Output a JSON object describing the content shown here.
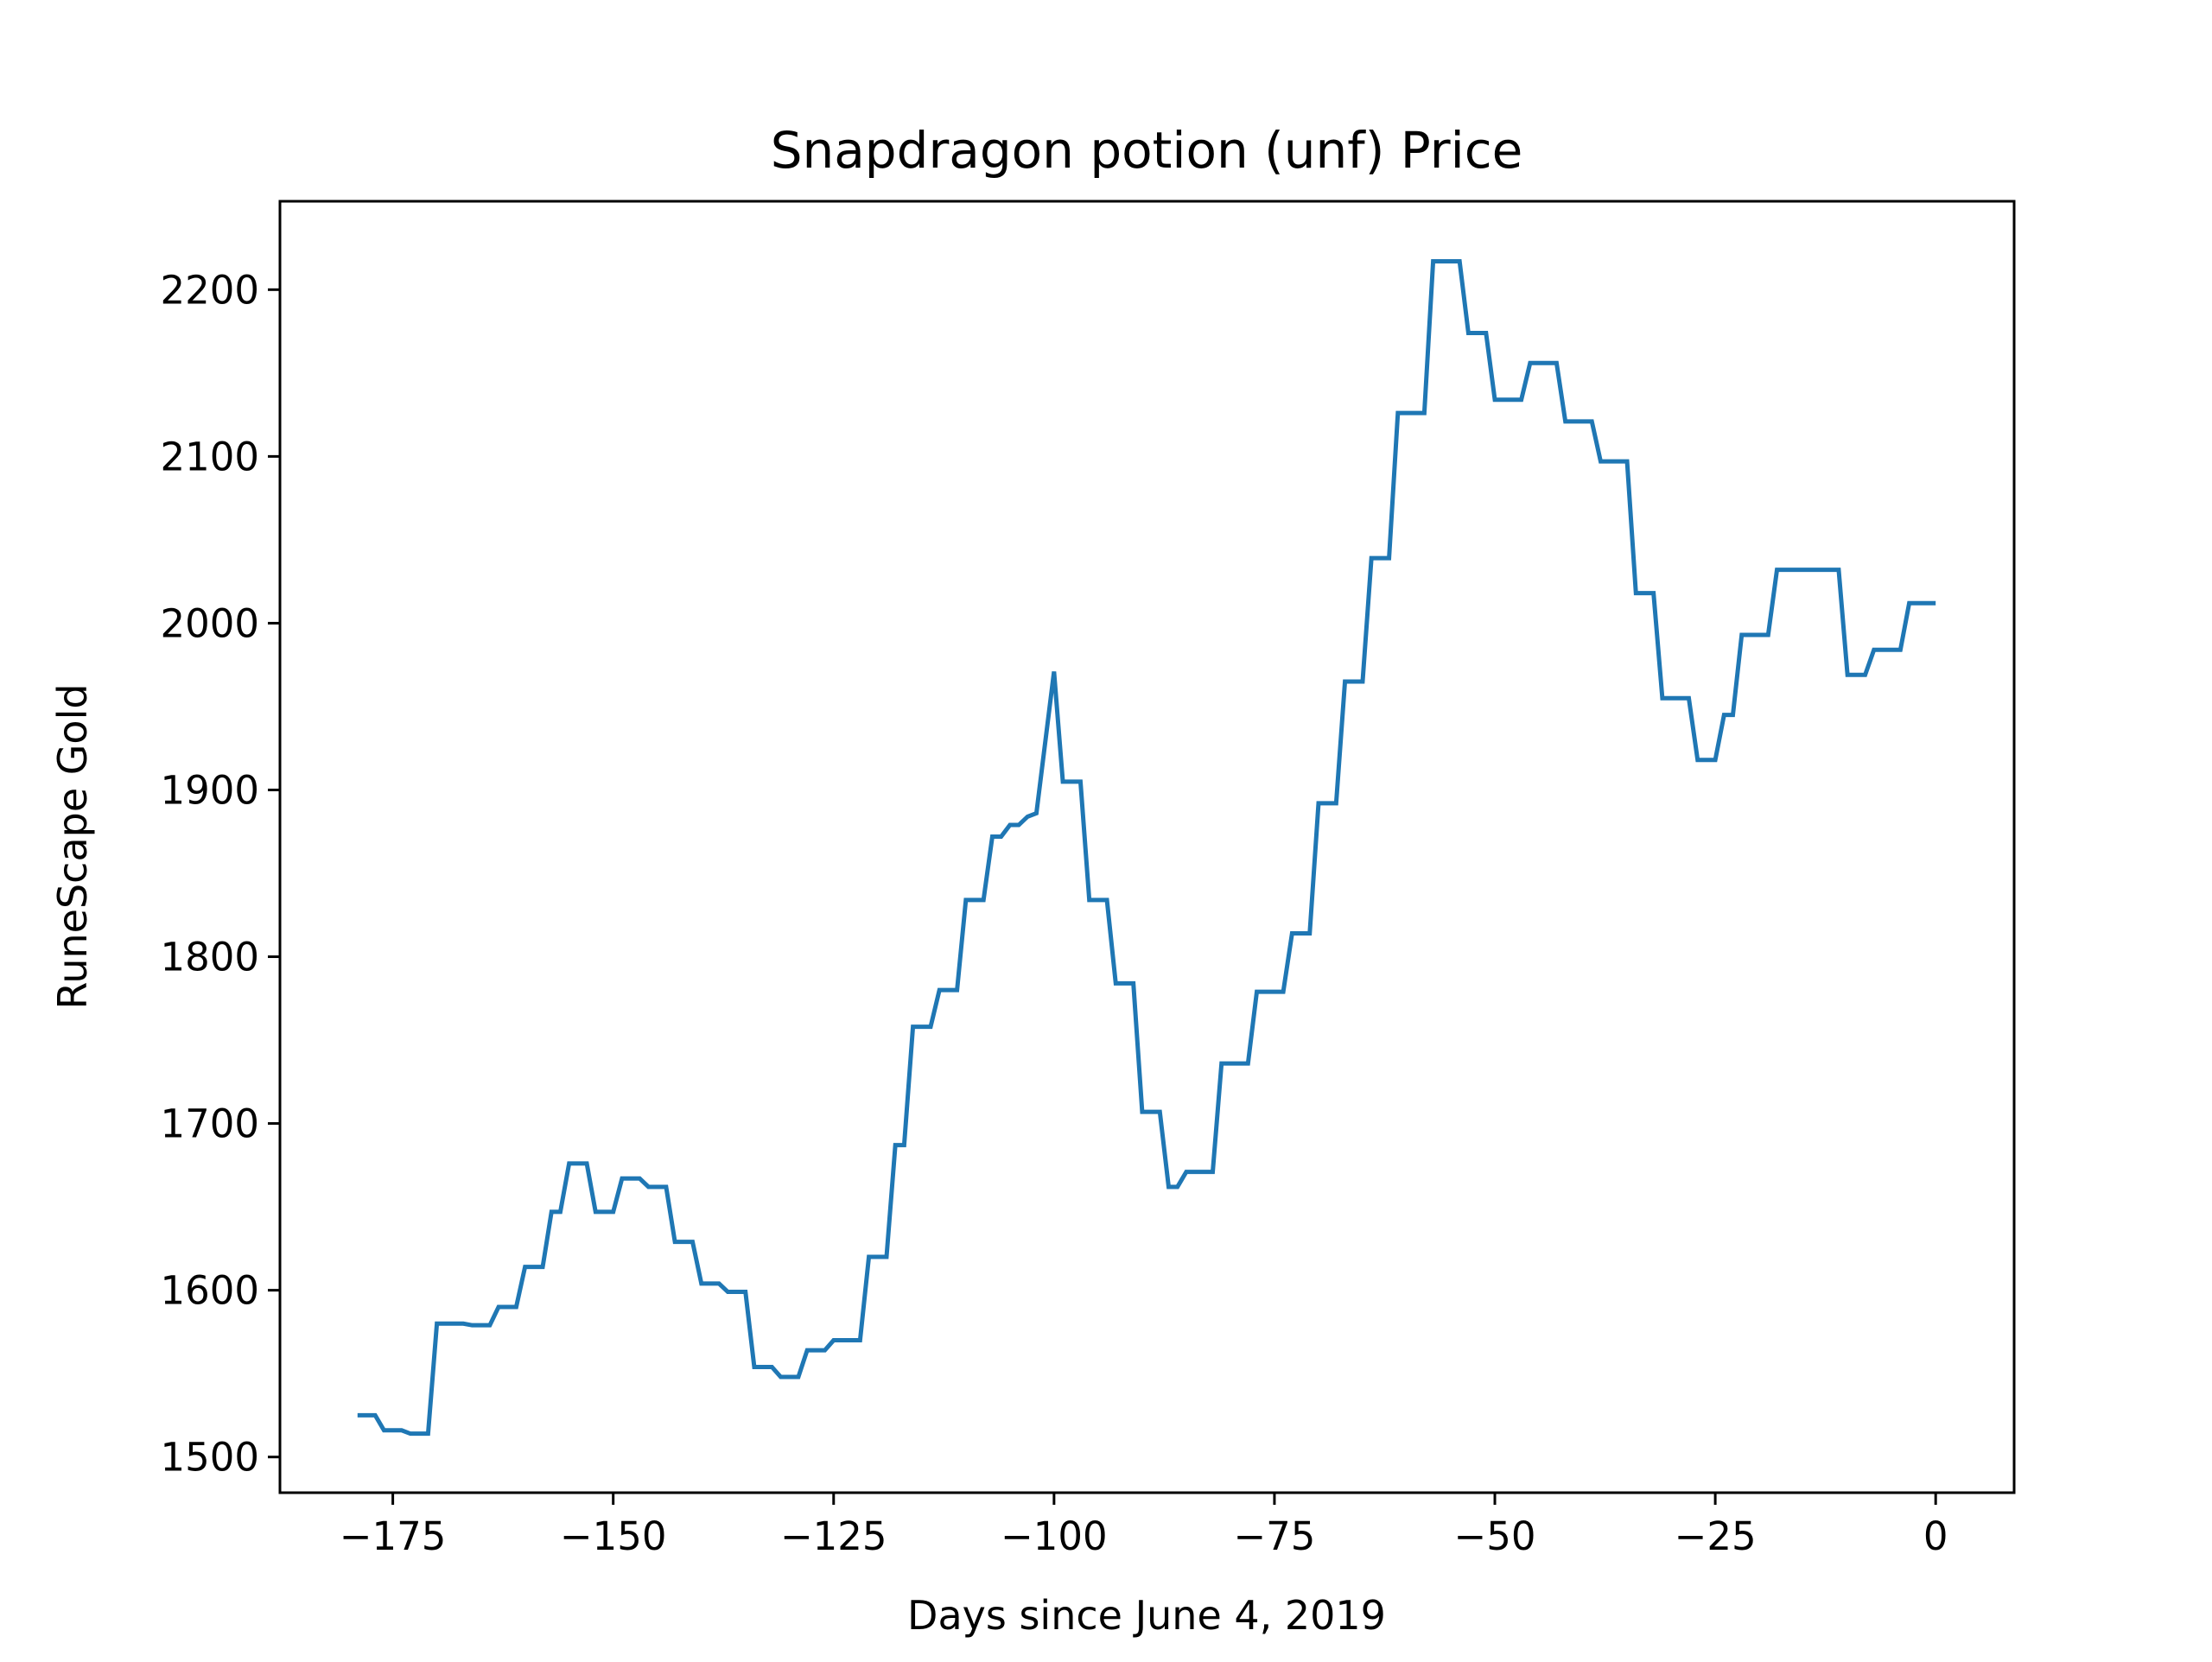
{
  "chart_data": {
    "type": "line",
    "title": "Snapdragon potion (unf) Price",
    "x_label": "Days since June 4, 2019",
    "y_label": "RuneScape Gold",
    "xlim": [
      -187.8,
      8.9
    ],
    "ylim": [
      1478.6,
      2253
    ],
    "xticks": [
      {
        "value": -175,
        "label": "−175"
      },
      {
        "value": -150,
        "label": "−150"
      },
      {
        "value": -125,
        "label": "−125"
      },
      {
        "value": -100,
        "label": "−100"
      },
      {
        "value": -75,
        "label": "−75"
      },
      {
        "value": -50,
        "label": "−50"
      },
      {
        "value": -25,
        "label": "−25"
      },
      0
    ],
    "yticks": [
      1500,
      1600,
      1700,
      1800,
      1900,
      2000,
      2100,
      2200
    ],
    "grid": false,
    "x": [
      -179,
      -177,
      -176,
      -174,
      -173,
      -171,
      -170,
      -167,
      -166,
      -164,
      -163,
      -161,
      -160,
      -158,
      -157,
      -156,
      -155,
      -153,
      -152,
      -150,
      -149,
      -147,
      -146,
      -144,
      -143,
      -141,
      -140,
      -138,
      -137,
      -135,
      -134,
      -132,
      -131,
      -129,
      -128,
      -126,
      -125,
      -122,
      -121,
      -119,
      -118,
      -117,
      -116,
      -114,
      -113,
      -111,
      -110,
      -108,
      -107,
      -106,
      -105,
      -104,
      -103,
      -102,
      -100,
      -99,
      -97,
      -96,
      -94,
      -93,
      -91,
      -90,
      -88,
      -87,
      -86,
      -85,
      -82,
      -81,
      -78,
      -77,
      -74,
      -73,
      -71,
      -70,
      -68,
      -67,
      -65,
      -64,
      -62,
      -61,
      -58,
      -57,
      -54,
      -53,
      -51,
      -50,
      -47,
      -46,
      -43,
      -42,
      -39,
      -38,
      -35,
      -34,
      -32,
      -31,
      -28,
      -27,
      -25,
      -24,
      -23,
      -22,
      -19,
      -18,
      -11,
      -10,
      -8,
      -7,
      -4,
      -3,
      0
    ],
    "series": [
      {
        "name": "price",
        "color": "#1f77b4",
        "values": [
          1525,
          1525,
          1516,
          1516,
          1514,
          1514,
          1580,
          1580,
          1579,
          1579,
          1590,
          1590,
          1614,
          1614,
          1647,
          1647,
          1676,
          1676,
          1647,
          1647,
          1667,
          1667,
          1662,
          1662,
          1629,
          1629,
          1604,
          1604,
          1599,
          1599,
          1554,
          1554,
          1548,
          1548,
          1564,
          1564,
          1570,
          1570,
          1620,
          1620,
          1687,
          1687,
          1758,
          1758,
          1780,
          1780,
          1834,
          1834,
          1872,
          1872,
          1879,
          1879,
          1884,
          1886,
          1971,
          1905,
          1905,
          1834,
          1834,
          1784,
          1784,
          1707,
          1707,
          1662,
          1662,
          1671,
          1671,
          1736,
          1736,
          1779,
          1779,
          1814,
          1814,
          1892,
          1892,
          1965,
          1965,
          2039,
          2039,
          2126,
          2126,
          2217,
          2217,
          2174,
          2174,
          2134,
          2134,
          2156,
          2156,
          2121,
          2121,
          2097,
          2097,
          2018,
          2018,
          1955,
          1955,
          1918,
          1918,
          1945,
          1945,
          1993,
          1993,
          2032,
          2032,
          1969,
          1969,
          1984,
          1984,
          2012,
          2012
        ]
      }
    ]
  }
}
